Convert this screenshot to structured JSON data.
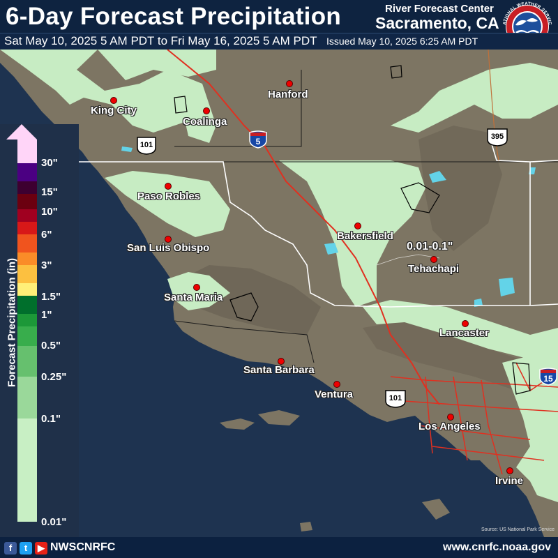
{
  "header": {
    "title": "6-Day Forecast Precipitation",
    "period": "Sat May 10, 2025 5 AM PDT to Fri May 16, 2025 5 AM PDT",
    "issued": "Issued May 10, 2025 6:25 AM PDT",
    "center_line1": "River Forecast Center",
    "center_line2": "Sacramento, CA",
    "logo_text": "NATIONAL WEATHER SERVICE"
  },
  "legend": {
    "title": "Forecast Precipitation (in)",
    "ticks": [
      "30\"",
      "15\"",
      "10\"",
      "6\"",
      "3\"",
      "1.5\"",
      "1\"",
      "0.5\"",
      "0.25\"",
      "0.1\"",
      "0.01\""
    ],
    "colors": [
      "#ffd5f8",
      "#4b0082",
      "#3d0030",
      "#6b0010",
      "#a00020",
      "#d81818",
      "#f0541e",
      "#fa8c28",
      "#fcc040",
      "#ffef78",
      "#f9ff9a",
      "#006f2c",
      "#1c9838",
      "#38ad4c",
      "#66c06e",
      "#9ad89a",
      "#c8efc4"
    ]
  },
  "map": {
    "contour_label": "0.01-0.1\"",
    "colors": {
      "ocean": "#1e3350",
      "land": "#7d7563",
      "precip_light": "#c7ecc3",
      "lake": "#63d3e8",
      "interstate": "#e03020",
      "border": "#ffffff"
    },
    "cities": [
      {
        "name": "Hanford"
      },
      {
        "name": "King City"
      },
      {
        "name": "Coalinga"
      },
      {
        "name": "Paso Robles"
      },
      {
        "name": "San Luis Obispo"
      },
      {
        "name": "Bakersfield"
      },
      {
        "name": "Tehachapi"
      },
      {
        "name": "Santa Maria"
      },
      {
        "name": "Lancaster"
      },
      {
        "name": "Santa Barbara"
      },
      {
        "name": "Ventura"
      },
      {
        "name": "Los Angeles"
      },
      {
        "name": "Irvine"
      }
    ],
    "shields": [
      {
        "type": "us",
        "number": "101"
      },
      {
        "type": "interstate",
        "number": "5"
      },
      {
        "type": "us",
        "number": "395"
      },
      {
        "type": "us",
        "number": "101"
      },
      {
        "type": "interstate",
        "number": "15"
      }
    ],
    "credit": "Source: US National Park Service"
  },
  "footer": {
    "handle": "NWSCNRFC",
    "website": "www.cnrfc.noaa.gov",
    "icons": [
      "facebook-icon",
      "twitter-icon",
      "youtube-icon"
    ]
  }
}
